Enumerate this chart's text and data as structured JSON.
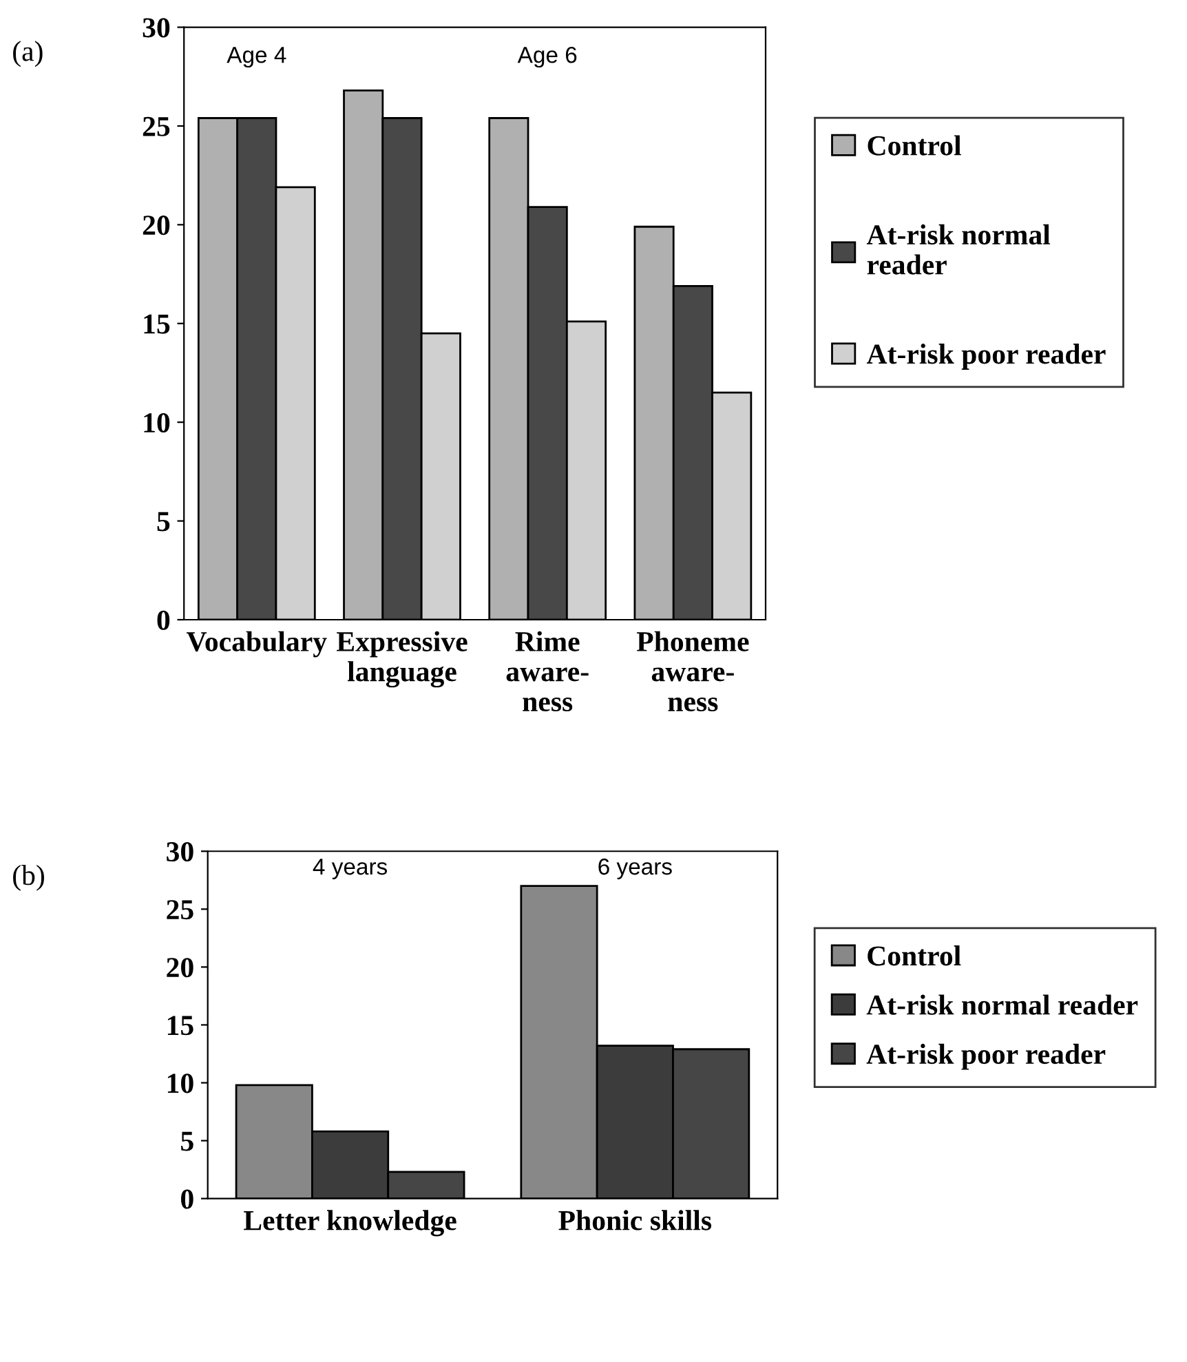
{
  "chart_data": [
    {
      "type": "bar",
      "categories": [
        "Vocabulary",
        "Expressive\nlanguage",
        "Rime\naware-\nness",
        "Phoneme\naware-\nness"
      ],
      "series": [
        {
          "name": "Control",
          "color": "#b0b0b0",
          "values": [
            25.4,
            26.8,
            25.4,
            19.9
          ]
        },
        {
          "name": "At-risk normal\nreader",
          "color": "#484848",
          "values": [
            25.4,
            25.4,
            20.9,
            16.9
          ]
        },
        {
          "name": "At-risk poor reader",
          "color": "#d0d0d0",
          "values": [
            21.9,
            14.5,
            15.1,
            11.5
          ]
        }
      ],
      "ylim": [
        0,
        30
      ],
      "yticks": [
        0,
        5,
        10,
        15,
        20,
        25,
        30
      ],
      "legend": "right",
      "annotations": [
        "(a)",
        "Age 4",
        "Age 6"
      ]
    },
    {
      "type": "bar",
      "categories": [
        "Letter knowledge",
        "Phonic skills"
      ],
      "series": [
        {
          "name": "Control",
          "color": "#888888",
          "values": [
            9.8,
            27.0
          ]
        },
        {
          "name": "At-risk normal reader",
          "color": "#3c3c3c",
          "values": [
            5.8,
            13.2
          ]
        },
        {
          "name": "At-risk poor reader",
          "color": "#464646",
          "values": [
            2.3,
            12.9
          ]
        }
      ],
      "ylim": [
        0,
        30
      ],
      "yticks": [
        0,
        5,
        10,
        15,
        20,
        25,
        30
      ],
      "legend": "right",
      "annotations": [
        "(b)",
        "4 years",
        "6 years"
      ]
    }
  ]
}
